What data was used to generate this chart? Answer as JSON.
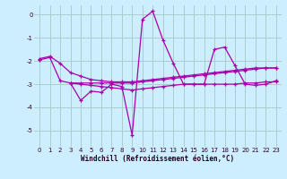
{
  "background_color": "#cceeff",
  "grid_color": "#aacccc",
  "line_color": "#aa00aa",
  "xlim": [
    -0.5,
    23.5
  ],
  "ylim": [
    -5.7,
    0.4
  ],
  "yticks": [
    0,
    -1,
    -2,
    -3,
    -4,
    -5
  ],
  "xticks": [
    0,
    1,
    2,
    3,
    4,
    5,
    6,
    7,
    8,
    9,
    10,
    11,
    12,
    13,
    14,
    15,
    16,
    17,
    18,
    19,
    20,
    21,
    22,
    23
  ],
  "xlabel": "Windchill (Refroidissement éolien,°C)",
  "series": [
    {
      "x": [
        0,
        1,
        2,
        3,
        4,
        5,
        6,
        7,
        8,
        9,
        10,
        11,
        12,
        13,
        14,
        15,
        16,
        17,
        18,
        19,
        20,
        21,
        22,
        23
      ],
      "y": [
        -1.9,
        -1.8,
        -2.1,
        -2.5,
        -2.65,
        -2.8,
        -2.85,
        -2.9,
        -2.9,
        -2.9,
        -2.85,
        -2.8,
        -2.75,
        -2.7,
        -2.65,
        -2.6,
        -2.55,
        -2.5,
        -2.45,
        -2.4,
        -2.35,
        -2.3,
        -2.3,
        -2.3
      ]
    },
    {
      "x": [
        0,
        1,
        2,
        3,
        4,
        5,
        6,
        7,
        8,
        9,
        10,
        11,
        12,
        13,
        14,
        15,
        16,
        17,
        18,
        19,
        20,
        21,
        22,
        23
      ],
      "y": [
        -1.95,
        -1.85,
        -2.85,
        -2.95,
        -3.7,
        -3.3,
        -3.35,
        -3.0,
        -3.1,
        -5.2,
        -0.2,
        0.15,
        -1.1,
        -2.1,
        -3.0,
        -3.0,
        -3.0,
        -1.5,
        -1.4,
        -2.2,
        -3.0,
        -3.05,
        -3.0,
        -2.85
      ]
    },
    {
      "x": [
        3,
        4,
        5,
        6,
        7,
        8,
        9,
        10,
        11,
        12,
        13,
        14,
        15,
        16,
        17,
        18,
        19,
        20,
        21,
        22,
        23
      ],
      "y": [
        -2.95,
        -2.95,
        -2.95,
        -2.95,
        -2.95,
        -2.95,
        -2.95,
        -2.9,
        -2.85,
        -2.8,
        -2.75,
        -2.7,
        -2.65,
        -2.6,
        -2.55,
        -2.5,
        -2.45,
        -2.4,
        -2.35,
        -2.3,
        -2.3
      ]
    },
    {
      "x": [
        3,
        4,
        5,
        6,
        7,
        8,
        9,
        10,
        11,
        12,
        13,
        14,
        15,
        16,
        17,
        18,
        19,
        20,
        21,
        22,
        23
      ],
      "y": [
        -2.95,
        -3.0,
        -3.05,
        -3.1,
        -3.15,
        -3.2,
        -3.25,
        -3.2,
        -3.15,
        -3.1,
        -3.05,
        -3.0,
        -3.0,
        -3.0,
        -3.0,
        -3.0,
        -3.0,
        -2.95,
        -2.95,
        -2.9,
        -2.9
      ]
    }
  ]
}
